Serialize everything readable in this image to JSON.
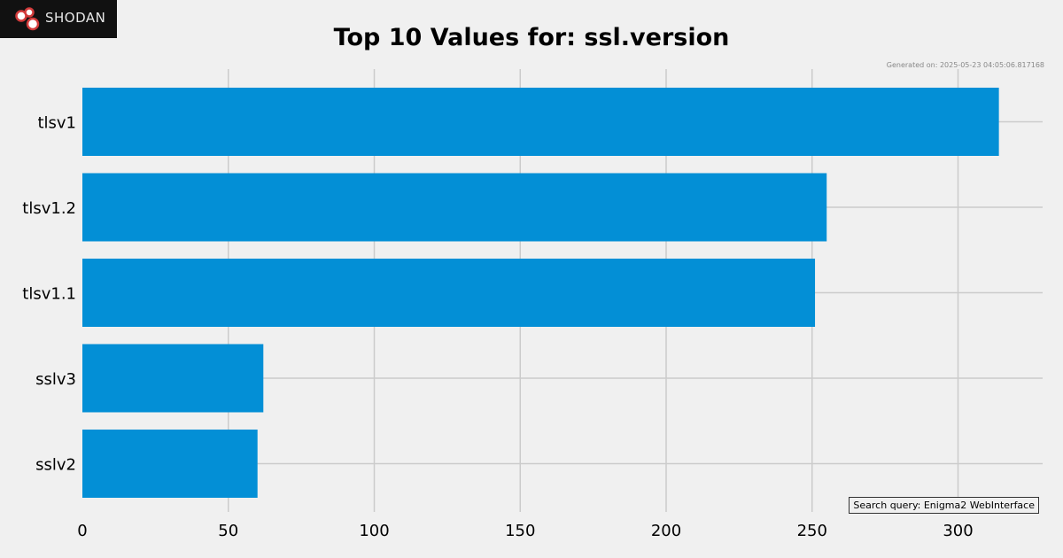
{
  "brand": {
    "name": "SHODAN"
  },
  "generated_text": "Generated on: 2025-05-23 04:05:06.817168",
  "search_query_text": "Search query: Enigma2 WebInterface",
  "chart_data": {
    "type": "bar",
    "orientation": "horizontal",
    "title": "Top 10 Values for: ssl.version",
    "xlabel": "",
    "ylabel": "",
    "categories": [
      "tlsv1",
      "tlsv1.2",
      "tlsv1.1",
      "sslv3",
      "sslv2"
    ],
    "values": [
      314,
      255,
      251,
      62,
      60
    ],
    "xlim": [
      0,
      330
    ],
    "xticks": [
      0,
      50,
      100,
      150,
      200,
      250,
      300
    ],
    "grid": true,
    "bar_color": "#038fd6",
    "grid_color": "#cbcbcb"
  }
}
